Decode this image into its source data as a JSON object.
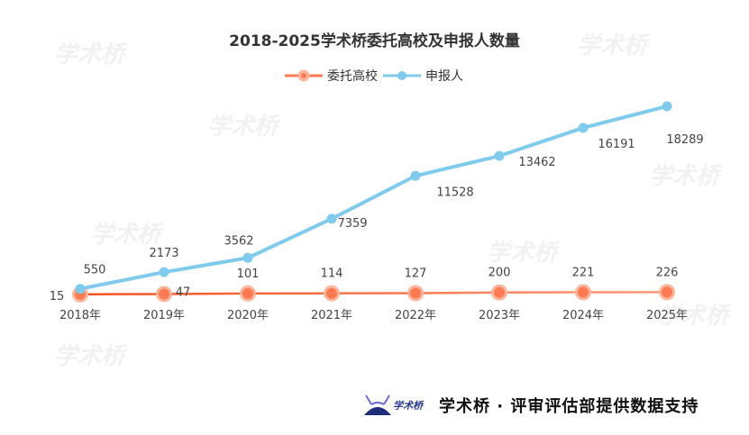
{
  "watermark": "学术桥",
  "chart_data": {
    "type": "line",
    "title": "2018-2025学术桥委托高校及申报人数量",
    "categories": [
      "2018年",
      "2019年",
      "2020年",
      "2021年",
      "2022年",
      "2023年",
      "2024年",
      "2025年"
    ],
    "series": [
      {
        "name": "委托高校",
        "values": [
          15,
          47,
          101,
          114,
          127,
          200,
          221,
          226
        ],
        "color": "#f4511e"
      },
      {
        "name": "申报人",
        "values": [
          550,
          2173,
          3562,
          7359,
          11528,
          13462,
          16191,
          18289
        ],
        "color": "#7ecbee"
      }
    ],
    "ylim": [
      0,
      18289
    ],
    "grid": false,
    "legend_position": "top-center",
    "y_axis_visible": false
  },
  "footer": {
    "logo_text": "学术桥",
    "credit": "学术桥 · 评审评估部提供数据支持"
  }
}
